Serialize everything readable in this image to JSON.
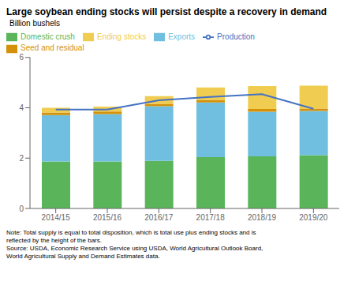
{
  "chart_data": {
    "type": "bar",
    "title": "Large soybean ending stocks will persist despite a recovery in demand",
    "ylabel": "Billion bushels",
    "note": "Note: Total supply is equal to total disposition, which is total use plus ending stocks and is\nreflected by the height of the bars.\nSource: USDA, Economic Research Service using USDA, World Agricultural Outlook Board,\nWorld Agricultural Supply and Demand Estimates data.",
    "categories": [
      "2014/15",
      "2015/16",
      "2016/17",
      "2017/18",
      "2018/19",
      "2019/20"
    ],
    "stacked": true,
    "series": [
      {
        "name": "Domestic crush",
        "type": "bar",
        "color": "#5ab55a",
        "values": [
          1.87,
          1.87,
          1.89,
          2.04,
          2.07,
          2.12
        ]
      },
      {
        "name": "Exports",
        "type": "bar",
        "color": "#70bfe0",
        "values": [
          1.84,
          1.88,
          2.17,
          2.17,
          1.77,
          1.75
        ]
      },
      {
        "name": "Seed and residual",
        "type": "bar",
        "color": "#d4920a",
        "values": [
          0.1,
          0.1,
          0.1,
          0.1,
          0.11,
          0.1
        ]
      },
      {
        "name": "Ending stocks",
        "type": "bar",
        "color": "#f0cc50",
        "values": [
          0.19,
          0.2,
          0.3,
          0.5,
          0.91,
          0.91
        ]
      },
      {
        "name": "Production",
        "type": "line",
        "color": "#4472c4",
        "values": [
          3.93,
          3.93,
          4.3,
          4.43,
          4.54,
          3.96
        ]
      }
    ],
    "ylim": [
      0,
      6
    ],
    "yticks": [
      0,
      2,
      4,
      6
    ],
    "grid": false,
    "legend": "upper left"
  }
}
